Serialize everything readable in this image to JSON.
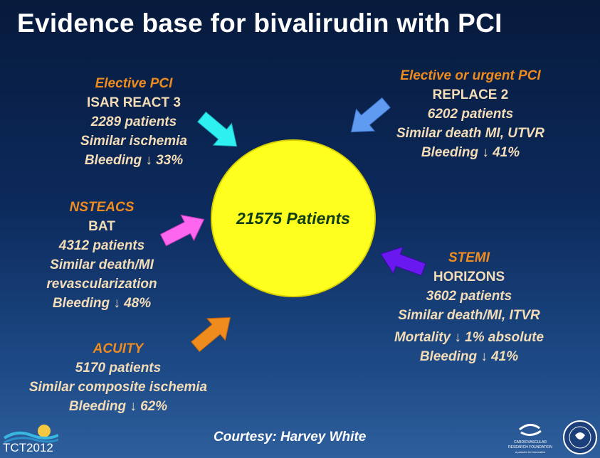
{
  "title": "Evidence base for bivalirudin with PCI",
  "center": "21575 Patients",
  "blocks": {
    "isar": {
      "heading": "Elective PCI",
      "lines": [
        "ISAR REACT 3",
        "2289 patients",
        "Similar ischemia",
        "Bleeding ↓ 33%"
      ]
    },
    "replace": {
      "heading": "Elective or urgent PCI",
      "lines": [
        "REPLACE 2",
        "6202 patients",
        "Similar death MI, UTVR",
        "Bleeding ↓ 41%"
      ]
    },
    "bat": {
      "heading": "NSTEACS",
      "lines": [
        "BAT",
        "4312 patients",
        "Similar death/MI",
        "revascularization",
        "Bleeding ↓ 48%"
      ]
    },
    "horizons": {
      "heading": "STEMI",
      "lines": [
        "HORIZONS",
        "3602 patients",
        "Similar death/MI, ITVR",
        "Mortality ↓ 1% absolute",
        "Bleeding ↓ 41%"
      ]
    },
    "acuity": {
      "heading": "ACUITY",
      "lines": [
        "5170 patients",
        "Similar composite ischemia",
        "Bleeding ↓ 62%"
      ]
    }
  },
  "footer": "Courtesy:  Harvey White",
  "logos": {
    "tct": "TCT2012",
    "crf_line1": "CARDIOVASCULAR",
    "crf_line2": "RESEARCH FOUNDATION",
    "crf_tagline": "a passion for innovation",
    "seal_text": "AMERICAN COLLEGE of CARDIOLOGY"
  },
  "colors": {
    "heading": "#f08c1e",
    "body_text": "#f3dcb6",
    "circle": "#ffff1f",
    "arrow_isar": "#2ef0f0",
    "arrow_replace": "#5f9bf0",
    "arrow_bat": "#ff66f0",
    "arrow_horizons": "#6a18f0",
    "arrow_acuity": "#f08c1e"
  },
  "icons": [
    "arrow-right-down-icon",
    "arrow-left-down-icon",
    "arrow-right-up-icon",
    "arrow-left-up-icon",
    "arrow-right-up-icon"
  ]
}
